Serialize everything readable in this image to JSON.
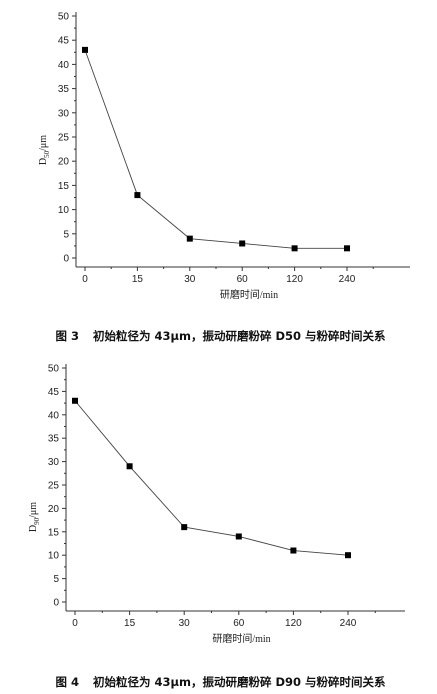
{
  "chart_data": [
    {
      "type": "line",
      "categories": [
        "0",
        "15",
        "30",
        "60",
        "120",
        "240"
      ],
      "series": [
        {
          "values": [
            43,
            13,
            4,
            3,
            2,
            2
          ]
        }
      ],
      "ylim": [
        0,
        50
      ],
      "yticks": [
        "0",
        "5",
        "10",
        "15",
        "20",
        "25",
        "30",
        "35",
        "40",
        "45",
        "50"
      ],
      "ylabel_main": "D",
      "ylabel_sub": "50",
      "ylabel_unit": "/μm",
      "xlabel": "研磨时间/min",
      "grid": false,
      "marker": "square"
    },
    {
      "type": "line",
      "categories": [
        "0",
        "15",
        "30",
        "60",
        "120",
        "240"
      ],
      "series": [
        {
          "values": [
            43,
            29,
            16,
            14,
            11,
            10
          ]
        }
      ],
      "ylim": [
        0,
        50
      ],
      "yticks": [
        "0",
        "5",
        "10",
        "15",
        "20",
        "25",
        "30",
        "35",
        "40",
        "45",
        "50"
      ],
      "ylabel_main": "D",
      "ylabel_sub": "90",
      "ylabel_unit": "/μm",
      "xlabel": "研磨时间/min",
      "grid": false,
      "marker": "square"
    }
  ],
  "captions": [
    {
      "label": "图 3",
      "text": "初始粒径为 43μm，振动研磨粉碎 D50 与粉碎时间关系"
    },
    {
      "label": "图 4",
      "text": "初始粒径为 43μm，振动研磨粉碎 D90 与粉碎时间关系"
    }
  ]
}
